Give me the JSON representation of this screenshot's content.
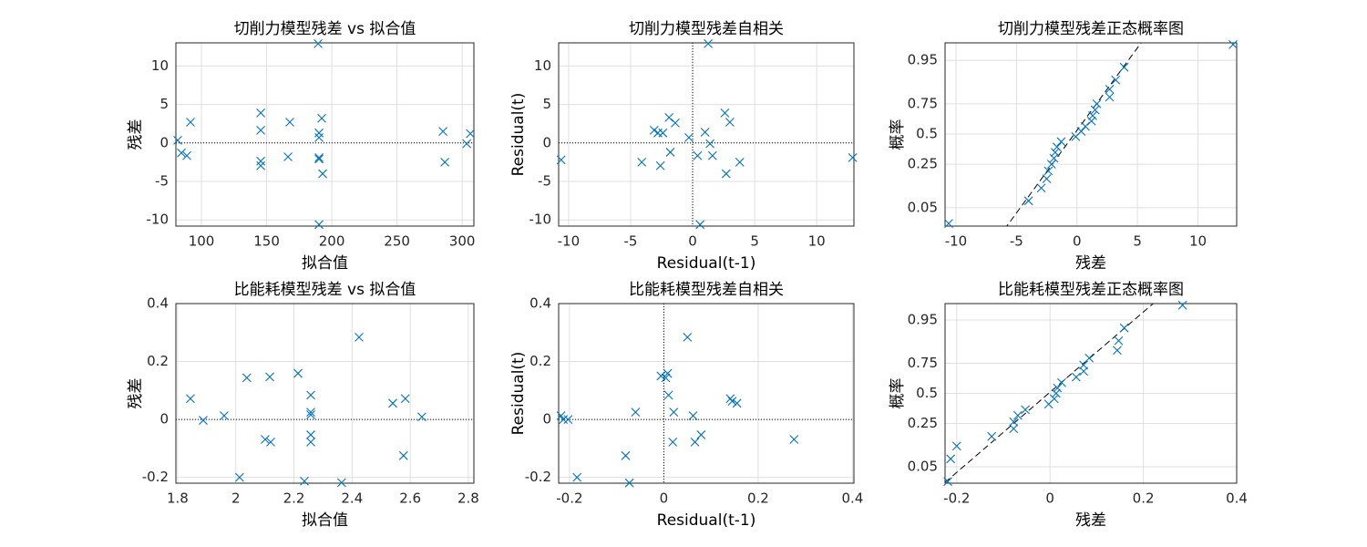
{
  "chart_data": [
    {
      "type": "scatter",
      "title": "切削力模型残差 vs 拟合值",
      "xlabel": "拟合值",
      "ylabel": "残差",
      "x": [
        81.8,
        84.6,
        88.8,
        91.6,
        145.5,
        145.5,
        145.5,
        145.5,
        167.8,
        166.4,
        189.5,
        190.2,
        190.2,
        190.2,
        190.2,
        192.3,
        193,
        190.2,
        285.3,
        286.7,
        303.5,
        306.3
      ],
      "series": [
        {
          "color": "#0072bd",
          "values": [
            0.35,
            -1.3,
            -1.65,
            2.7,
            3.9,
            1.65,
            -2.36,
            -2.95,
            2.7,
            -1.8,
            12.9,
            1.3,
            0.7,
            -1.9,
            -2.1,
            3.2,
            -4.0,
            -10.6,
            1.5,
            -2.5,
            -0.1,
            1.2
          ]
        }
      ],
      "xlim": [
        80.4,
        309
      ],
      "ylim": [
        -10.8,
        13
      ],
      "xticks": [
        100,
        150,
        200,
        250,
        300
      ],
      "yticks": [
        -10,
        -5,
        0,
        5,
        10
      ],
      "hlines": [
        0
      ],
      "grid": true
    },
    {
      "type": "scatter",
      "title": "切削力模型残差自相关",
      "xlabel": "Residual(t-1)",
      "ylabel": "Residual(t)",
      "x": [
        -10.6,
        -4.1,
        -3.1,
        -2.8,
        -2.4,
        -2.6,
        -1.9,
        -1.8,
        -1.4,
        -0.3,
        0.4,
        0.6,
        1.0,
        1.25,
        1.4,
        1.6,
        2.6,
        2.7,
        3.0,
        3.8,
        12.9
      ],
      "series": [
        {
          "color": "#0072bd",
          "values": [
            -2.2,
            -2.5,
            1.65,
            1.3,
            1.3,
            -2.95,
            3.3,
            -1.2,
            2.6,
            0.7,
            -1.65,
            -10.6,
            1.4,
            12.9,
            -0.1,
            -1.65,
            3.9,
            -4.0,
            2.7,
            -2.5,
            -1.9
          ]
        }
      ],
      "xlim": [
        -10.8,
        13
      ],
      "ylim": [
        -10.8,
        13
      ],
      "xticks": [
        -10,
        -5,
        0,
        5,
        10
      ],
      "yticks": [
        -10,
        -5,
        0,
        5,
        10
      ],
      "hlines": [
        0
      ],
      "vlines": [
        0
      ],
      "grid": true
    },
    {
      "type": "probability",
      "title": "切削力模型残差正态概率图",
      "xlabel": "残差",
      "ylabel": "概率",
      "x": [
        -10.6,
        -4.0,
        -2.95,
        -2.5,
        -2.36,
        -2.1,
        -1.9,
        -1.8,
        -1.65,
        -1.3,
        -0.1,
        0.35,
        0.7,
        1.2,
        1.3,
        1.5,
        1.65,
        2.7,
        2.7,
        3.2,
        3.9,
        12.9
      ],
      "series": [
        {
          "color": "#0072bd",
          "values": [
            0.023,
            0.068,
            0.114,
            0.159,
            0.205,
            0.25,
            0.295,
            0.341,
            0.386,
            0.432,
            0.477,
            0.523,
            0.568,
            0.614,
            0.659,
            0.705,
            0.75,
            0.795,
            0.841,
            0.886,
            0.932,
            0.977
          ]
        }
      ],
      "xlim": [
        -10.9,
        13.2
      ],
      "ylim": [
        0.02,
        0.979
      ],
      "xticks": [
        -10,
        -5,
        0,
        5,
        10
      ],
      "yticks": [
        0.05,
        0.25,
        0.5,
        0.75,
        0.95
      ],
      "grid": true
    },
    {
      "type": "scatter",
      "title": "比能耗模型残差 vs 拟合值",
      "xlabel": "拟合值",
      "ylabel": "残差",
      "x": [
        1.844,
        1.888,
        1.96,
        2.038,
        2.013,
        2.101,
        2.117,
        2.12,
        2.214,
        2.236,
        2.258,
        2.258,
        2.258,
        2.258,
        2.258,
        2.364,
        2.424,
        2.54,
        2.577,
        2.583,
        2.64
      ],
      "series": [
        {
          "color": "#0072bd",
          "values": [
            0.072,
            -0.003,
            0.013,
            0.144,
            -0.2,
            -0.069,
            0.147,
            -0.078,
            0.159,
            -0.213,
            0.084,
            0.025,
            0.016,
            -0.053,
            -0.078,
            -0.218,
            0.284,
            0.056,
            -0.125,
            0.072,
            0.009
          ]
        }
      ],
      "xlim": [
        1.794,
        2.819
      ],
      "ylim": [
        -0.22,
        0.4
      ],
      "xticks": [
        1.8,
        2,
        2.2,
        2.4,
        2.6,
        2.8
      ],
      "yticks": [
        -0.2,
        0,
        0.2,
        0.4
      ],
      "hlines": [
        0
      ],
      "grid": true
    },
    {
      "type": "scatter",
      "title": "比能耗模型残差自相关",
      "xlabel": "Residual(t-1)",
      "ylabel": "Residual(t)",
      "x": [
        -0.218,
        -0.213,
        -0.203,
        -0.184,
        -0.081,
        -0.073,
        -0.06,
        -0.006,
        0.004,
        0.008,
        0.01,
        0.021,
        0.019,
        0.05,
        0.062,
        0.066,
        0.079,
        0.141,
        0.145,
        0.155,
        0.276
      ],
      "series": [
        {
          "color": "#0072bd",
          "values": [
            0.013,
            0,
            0,
            -0.2,
            -0.125,
            -0.219,
            0.025,
            0.15,
            0.144,
            0.159,
            0.084,
            0.025,
            -0.078,
            0.284,
            0.013,
            -0.078,
            -0.053,
            0.072,
            0.063,
            0.056,
            -0.069
          ]
        }
      ],
      "xlim": [
        -0.223,
        0.403
      ],
      "ylim": [
        -0.22,
        0.4
      ],
      "xticks": [
        -0.2,
        0,
        0.2,
        0.4
      ],
      "yticks": [
        -0.2,
        0,
        0.2,
        0.4
      ],
      "hlines": [
        0
      ],
      "vlines": [
        0
      ],
      "grid": true
    },
    {
      "type": "probability",
      "title": "比能耗模型残差正态概率图",
      "xlabel": "残差",
      "ylabel": "概率",
      "x": [
        -0.219,
        -0.213,
        -0.2,
        -0.125,
        -0.078,
        -0.078,
        -0.069,
        -0.053,
        -0.003,
        0.009,
        0.013,
        0.016,
        0.025,
        0.056,
        0.072,
        0.072,
        0.084,
        0.144,
        0.147,
        0.159,
        0.284
      ],
      "series": [
        {
          "color": "#0072bd",
          "values": [
            0.024,
            0.071,
            0.119,
            0.167,
            0.214,
            0.262,
            0.31,
            0.357,
            0.405,
            0.452,
            0.5,
            0.548,
            0.595,
            0.643,
            0.69,
            0.738,
            0.786,
            0.833,
            0.881,
            0.929,
            0.976
          ]
        }
      ],
      "xlim": [
        -0.225,
        0.4
      ],
      "ylim": [
        0.022,
        0.978
      ],
      "xticks": [
        -0.2,
        0,
        0.2,
        0.4
      ],
      "yticks": [
        0.05,
        0.25,
        0.5,
        0.75,
        0.95
      ],
      "grid": true
    }
  ]
}
